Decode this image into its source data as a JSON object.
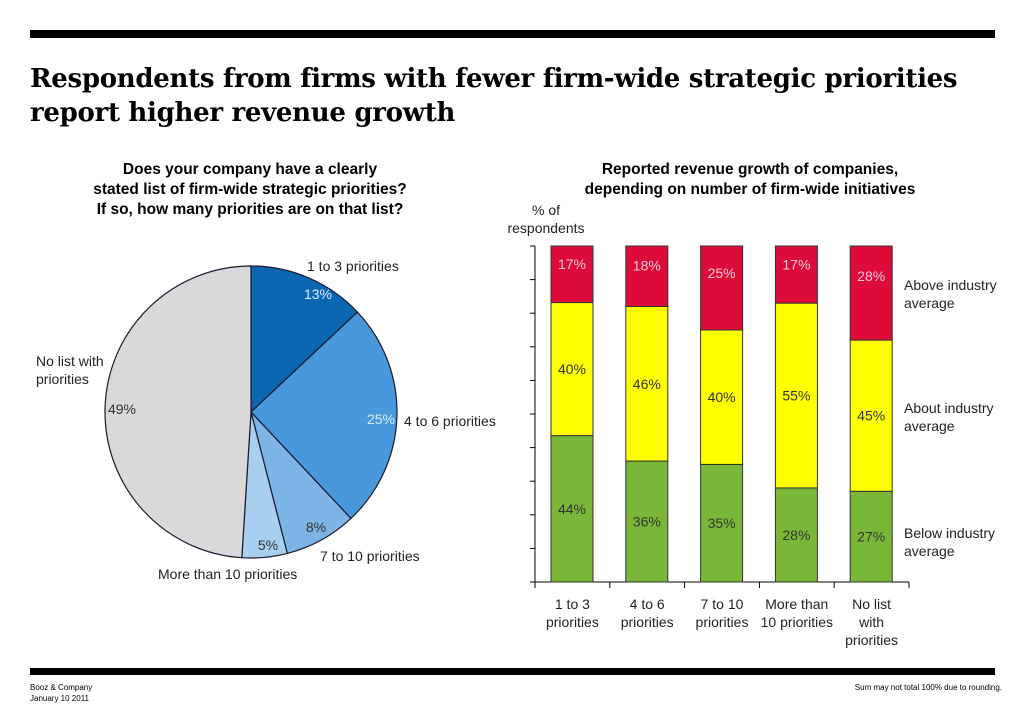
{
  "title": "Respondents from firms with fewer firm-wide strategic priorities report higher revenue growth",
  "footer": {
    "left": "Booz & Company\nJanuary 10 2011",
    "right": "Sum may not total 100% due to rounding."
  },
  "chart_data": [
    {
      "type": "pie",
      "title": "Does your company have a clearly\nstated list of firm-wide strategic priorities?\nIf so, how many priorities are on that list?",
      "slices": [
        {
          "label": "1 to 3 priorities",
          "value": 13,
          "value_label": "13%",
          "color": "#0b67b2"
        },
        {
          "label": "4 to 6 priorities",
          "value": 25,
          "value_label": "25%",
          "color": "#4a98dc"
        },
        {
          "label": "7 to 10 priorities",
          "value": 8,
          "value_label": "8%",
          "color": "#7db4e6"
        },
        {
          "label": "More than 10 priorities",
          "value": 5,
          "value_label": "5%",
          "color": "#a9cff0"
        },
        {
          "label": "No list with\npriorities",
          "value": 49,
          "value_label": "49%",
          "color": "#d9d9d9"
        }
      ]
    },
    {
      "type": "bar",
      "stacked": true,
      "title": "Reported revenue growth of companies,\ndepending on number of firm-wide initiatives",
      "ylabel": "% of\nrespondents",
      "ylim": [
        0,
        100
      ],
      "categories": [
        "1 to 3\npriorities",
        "4 to 6\npriorities",
        "7 to 10\npriorities",
        "More than\n10 priorities",
        "No list\nwith\npriorities"
      ],
      "series": [
        {
          "name": "Above industry\naverage",
          "values": [
            44,
            36,
            35,
            28,
            27
          ],
          "color": "#7ab738",
          "label_color": "#333333"
        },
        {
          "name": "About industry\naverage",
          "values": [
            40,
            46,
            40,
            55,
            45
          ],
          "color": "#ffff00",
          "label_color": "#333333"
        },
        {
          "name": "Below industry\naverage",
          "values": [
            17,
            18,
            25,
            17,
            28
          ],
          "color": "#dc0b3a",
          "label_color": "#f4c9d4"
        }
      ]
    }
  ]
}
